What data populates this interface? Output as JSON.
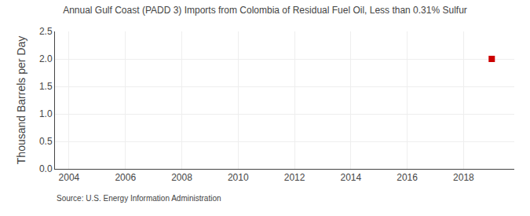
{
  "chart_data": {
    "type": "scatter",
    "title": "Annual Gulf Coast (PADD 3) Imports from Colombia of Residual Fuel Oil, Less than 0.31% Sulfur",
    "ylabel": "Thousand Barrels per Day",
    "annotations": [
      "Source: U.S. Energy Information Administration"
    ],
    "x": [
      2019
    ],
    "values": [
      2.0
    ],
    "color": "#cc0000",
    "marker": "square",
    "xlim": [
      2003.5,
      2019.8
    ],
    "ylim": [
      0,
      2.5
    ],
    "xticks": [
      2004,
      2006,
      2008,
      2010,
      2012,
      2014,
      2016,
      2018
    ],
    "yticks": [
      {
        "value": 0,
        "label": "0.0"
      },
      0.5,
      {
        "value": 1,
        "label": "1.0"
      },
      1.5,
      {
        "value": 2,
        "label": "2.0"
      },
      2.5
    ],
    "grid": true
  }
}
